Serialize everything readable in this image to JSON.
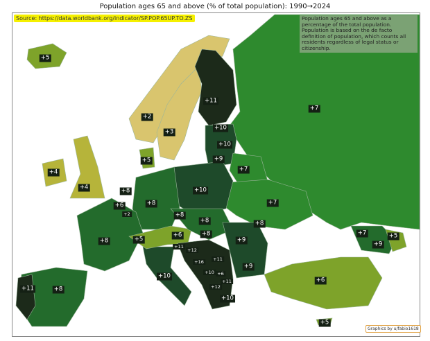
{
  "title": "Population ages 65 and above (% of total population):  1990→2024",
  "source": "Source: https://data.worldbank.org/indicator/SP.POP.65UP.TO.ZS",
  "note": "Population ages 65 and above as a percentage of the total population. Population is based on the de facto definition of population, which counts all residents regardless of legal status or citizenship.",
  "credit": "Graphics by u/fabio1618",
  "colors": {
    "very_high": "#1c2a1a",
    "high": "#1e4a2a",
    "mid": "#236b2c",
    "low": "#2e8a2e",
    "lower": "#7ea32a",
    "lowest": "#d9c56e",
    "sea": "#ffffff"
  },
  "countries": [
    {
      "name": "Iceland",
      "change": "+5"
    },
    {
      "name": "Norway",
      "change": "+2"
    },
    {
      "name": "Sweden",
      "change": "+3"
    },
    {
      "name": "Finland",
      "change": "+11"
    },
    {
      "name": "Russia",
      "change": "+7"
    },
    {
      "name": "Estonia",
      "change": "+10"
    },
    {
      "name": "Latvia",
      "change": "+10"
    },
    {
      "name": "Lithuania",
      "change": "+9"
    },
    {
      "name": "Belarus",
      "change": "+7"
    },
    {
      "name": "Denmark",
      "change": "+5"
    },
    {
      "name": "Ireland",
      "change": "+4"
    },
    {
      "name": "United Kingdom",
      "change": "+4"
    },
    {
      "name": "Netherlands",
      "change": "+8"
    },
    {
      "name": "Belgium",
      "change": "+6"
    },
    {
      "name": "Luxembourg",
      "change": "+2"
    },
    {
      "name": "Germany",
      "change": "+8"
    },
    {
      "name": "Poland",
      "change": "+10"
    },
    {
      "name": "Ukraine",
      "change": "+7"
    },
    {
      "name": "Czechia",
      "change": "+8"
    },
    {
      "name": "Slovakia",
      "change": "+8"
    },
    {
      "name": "Moldova",
      "change": "+8"
    },
    {
      "name": "Austria",
      "change": "+6"
    },
    {
      "name": "Hungary",
      "change": "+8"
    },
    {
      "name": "Romania",
      "change": "+9"
    },
    {
      "name": "France",
      "change": "+8"
    },
    {
      "name": "Switzerland",
      "change": "+5"
    },
    {
      "name": "Slovenia",
      "change": "+11"
    },
    {
      "name": "Croatia",
      "change": "+12"
    },
    {
      "name": "Bosnia and Herzegovina",
      "change": "+16"
    },
    {
      "name": "Serbia",
      "change": "+11"
    },
    {
      "name": "Bulgaria",
      "change": "+9"
    },
    {
      "name": "Montenegro",
      "change": "+10"
    },
    {
      "name": "Kosovo",
      "change": "+6"
    },
    {
      "name": "North Macedonia",
      "change": "+11"
    },
    {
      "name": "Albania",
      "change": "+12"
    },
    {
      "name": "Greece",
      "change": "+10"
    },
    {
      "name": "Italy",
      "change": "+10"
    },
    {
      "name": "Portugal",
      "change": "+11"
    },
    {
      "name": "Spain",
      "change": "+8"
    },
    {
      "name": "Turkey",
      "change": "+6"
    },
    {
      "name": "Georgia",
      "change": "+7"
    },
    {
      "name": "Armenia",
      "change": "+9"
    },
    {
      "name": "Azerbaijan",
      "change": "+5"
    },
    {
      "name": "Cyprus",
      "change": "+5"
    }
  ]
}
